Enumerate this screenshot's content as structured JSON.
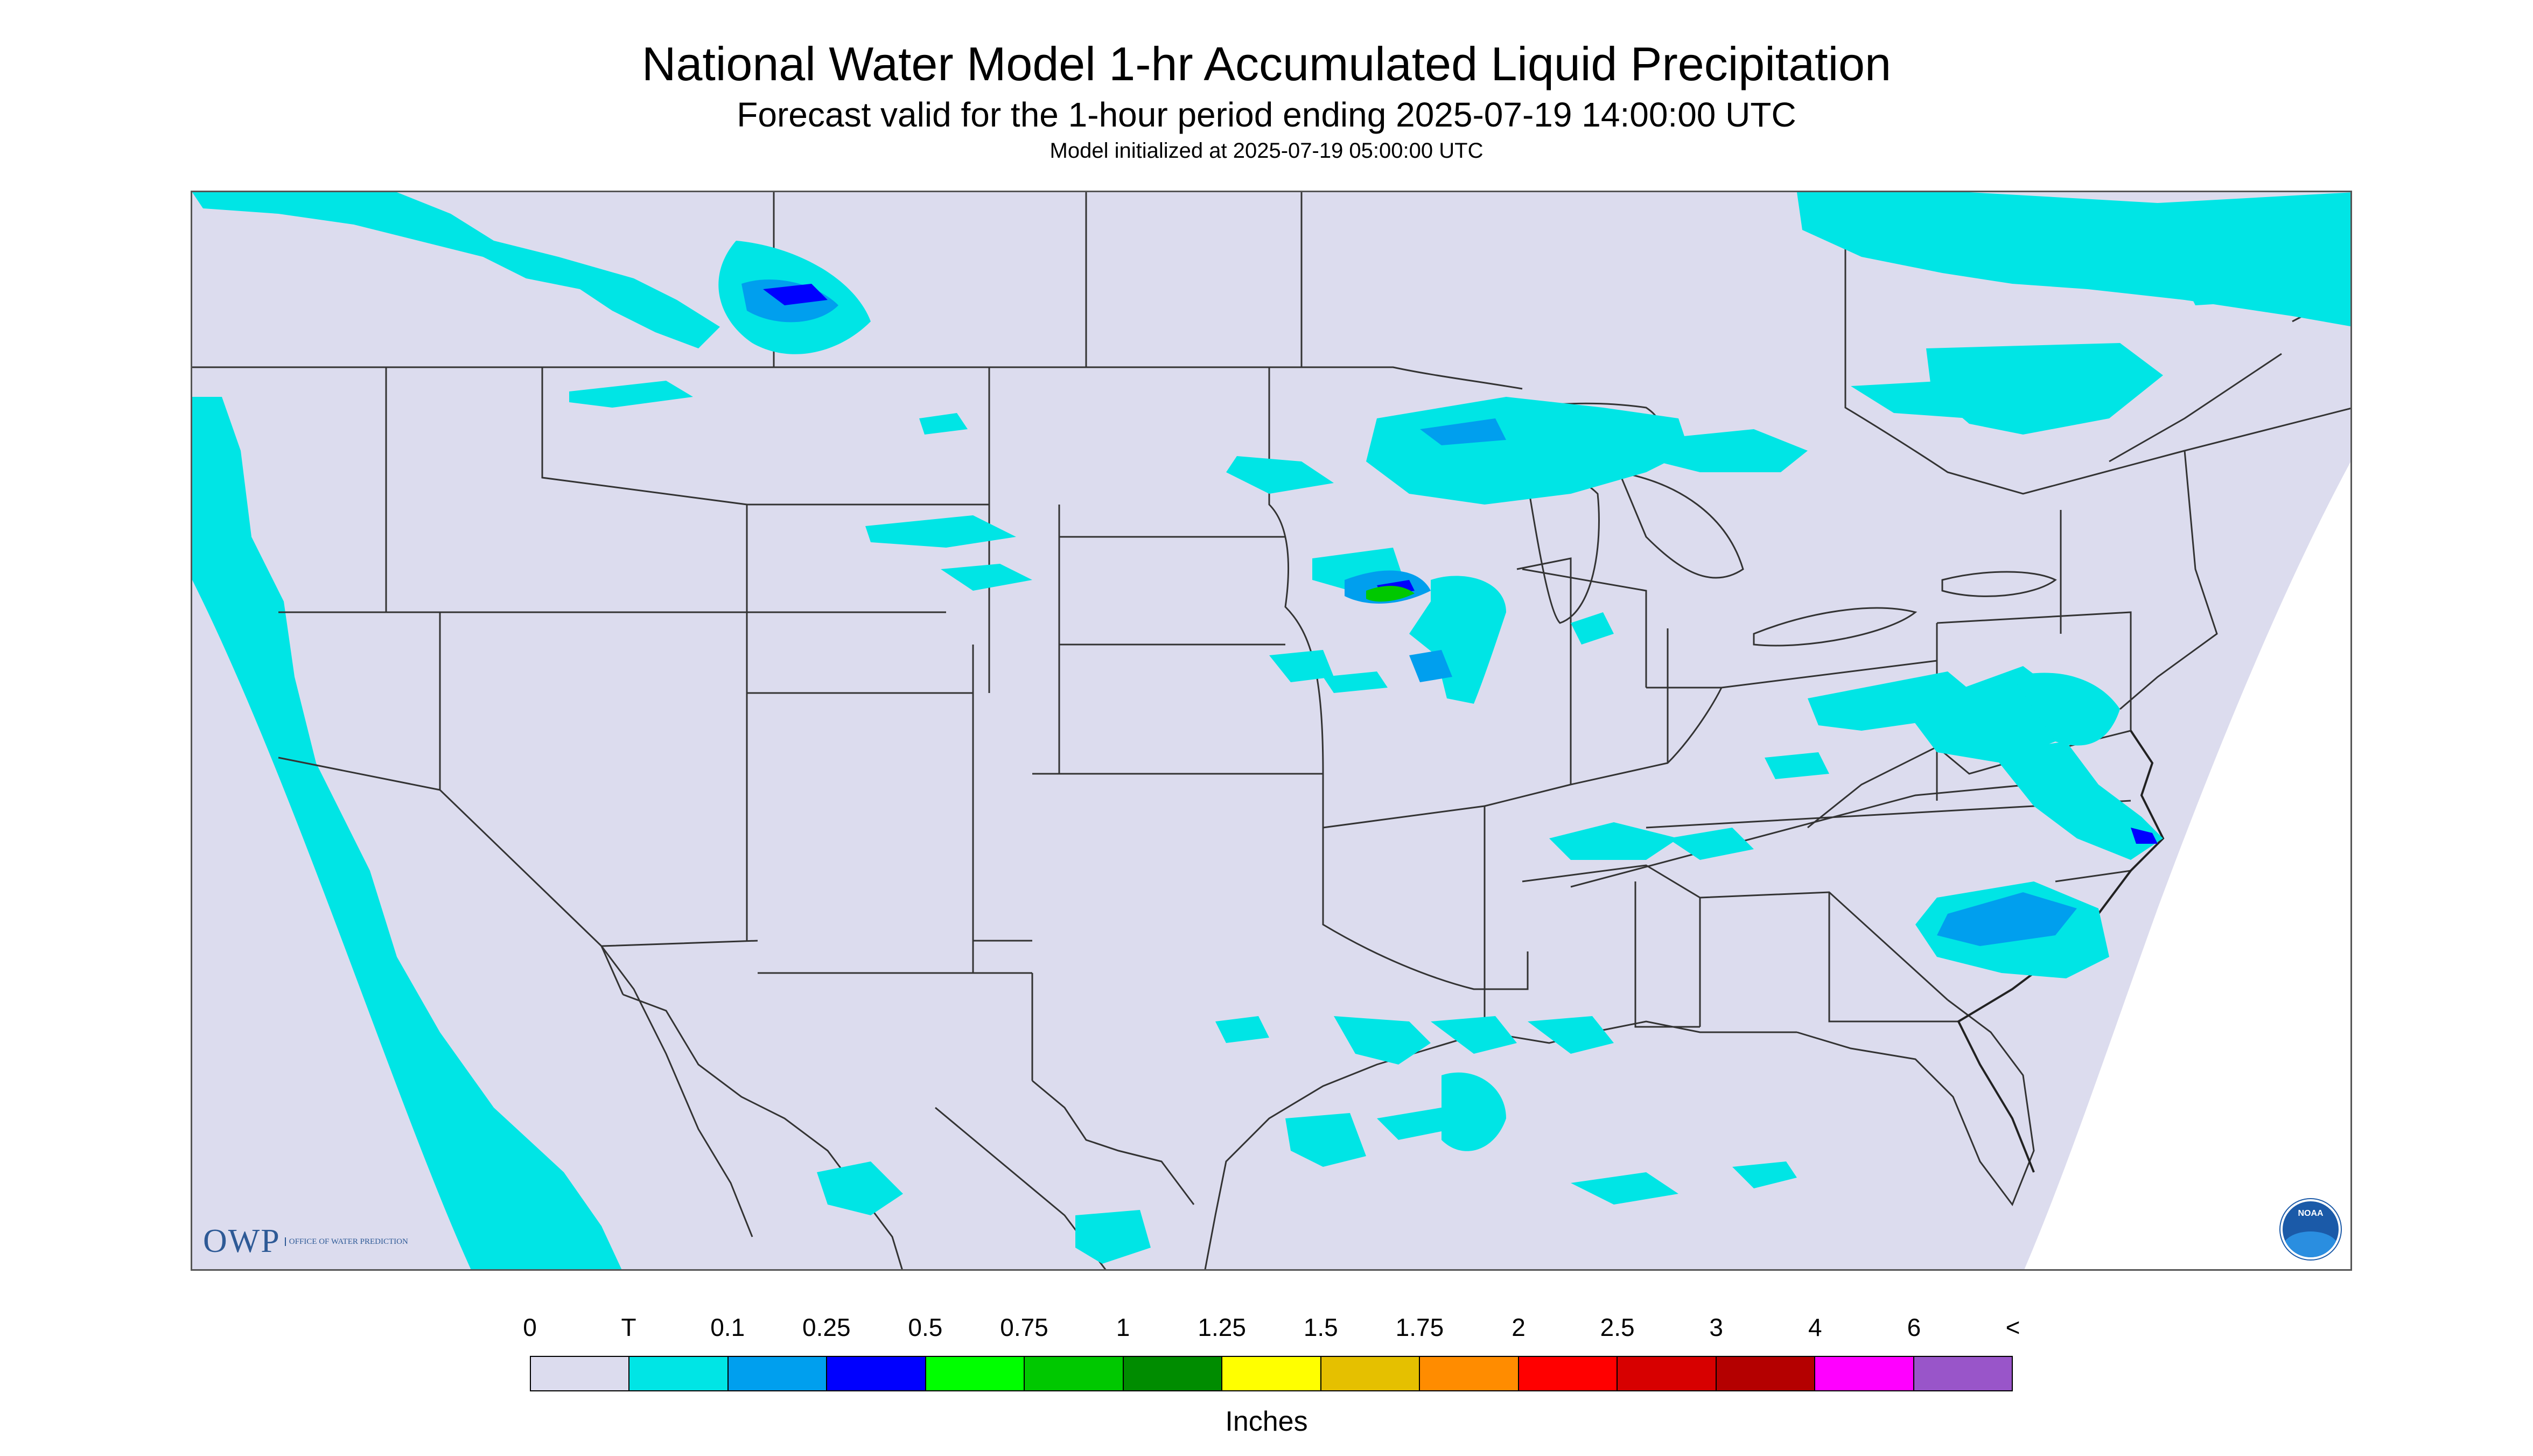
{
  "title": "National Water Model 1-hr Accumulated Liquid Precipitation",
  "subtitle": "Forecast valid for the 1-hour period ending 2025-07-19 14:00:00 UTC",
  "init_line": "Model initialized at 2025-07-19 05:00:00 UTC",
  "logo_owp": {
    "mark": "OWP",
    "text": "Office of Water Prediction"
  },
  "logo_noaa": {
    "text": "NOAA"
  },
  "legend": {
    "ticks": [
      "0",
      "T",
      "0.1",
      "0.25",
      "0.5",
      "0.75",
      "1",
      "1.25",
      "1.5",
      "1.75",
      "2",
      "2.5",
      "3",
      "4",
      "6",
      "<"
    ],
    "colors": [
      "#dcdcee",
      "#00e5e5",
      "#009fee",
      "#0000ff",
      "#00ff00",
      "#00c800",
      "#008c00",
      "#ffff00",
      "#e5c000",
      "#ff8c00",
      "#ff0000",
      "#d70000",
      "#b40000",
      "#ff00ff",
      "#9955c9"
    ],
    "units": "Inches"
  },
  "colors": {
    "background": "#dcdcee",
    "trace": "#00e5e5",
    "light": "#009fee",
    "moderate": "#0000ff",
    "heavy": "#00ff00",
    "outside_domain": "#ffffff",
    "boundary": "#333333"
  }
}
